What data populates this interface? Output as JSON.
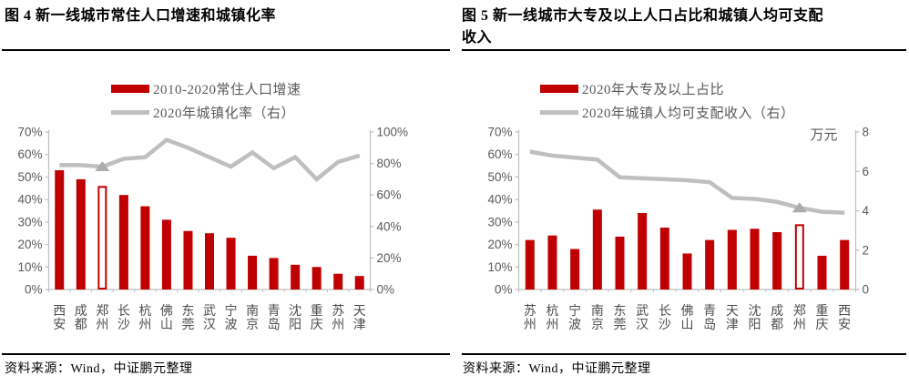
{
  "source_note": "资料来源：Wind，中证鹏元整理",
  "colors": {
    "bar_red": "#C00000",
    "line_gray": "#BFBFBF",
    "marker_gray": "#ACACAC",
    "axis_gray": "#BFBFBF",
    "tick_label_gray": "#595959",
    "category_label_gray": "#4d4d4d",
    "title_black": "#000000"
  },
  "chart_data": [
    {
      "type": "bar",
      "figure_label": "图 4",
      "title": "图 4  新一线城市常住人口增速和城镇化率",
      "legend": [
        {
          "label": "2010-2020常住人口增速",
          "swatch": "bar"
        },
        {
          "label": "2020年城镇化率（右）",
          "swatch": "line"
        }
      ],
      "categories": [
        "西安",
        "成都",
        "郑州",
        "长沙",
        "杭州",
        "佛山",
        "东莞",
        "武汉",
        "宁波",
        "南京",
        "青岛",
        "沈阳",
        "重庆",
        "苏州",
        "天津"
      ],
      "series": [
        {
          "name": "2010-2020常住人口增速",
          "type": "bar",
          "axis": "left",
          "values": [
            53,
            49,
            46,
            42,
            37,
            31,
            26,
            25,
            23,
            15,
            14,
            11,
            10,
            7,
            6
          ]
        },
        {
          "name": "2020年城镇化率（右）",
          "type": "line",
          "axis": "right",
          "values": [
            79,
            79,
            78,
            83,
            84,
            95,
            90,
            84,
            78,
            87,
            77,
            84,
            70,
            81,
            85
          ]
        }
      ],
      "left_axis": {
        "min": 0,
        "max": 70,
        "step": 10,
        "suffix": "%"
      },
      "right_axis": {
        "min": 0,
        "max": 100,
        "step": 20,
        "suffix": "%",
        "unit": ""
      },
      "highlight_category": "郑州",
      "grid": "off",
      "legend_position": "top"
    },
    {
      "type": "bar",
      "figure_label": "图 5",
      "title": "图 5  新一线城市大专及以上人口占比和城镇人均可支配收入",
      "legend": [
        {
          "label": "2020年大专及以上占比",
          "swatch": "bar"
        },
        {
          "label": "2020年城镇人均可支配收入（右）",
          "swatch": "line"
        }
      ],
      "categories": [
        "苏州",
        "杭州",
        "宁波",
        "南京",
        "东莞",
        "武汉",
        "长沙",
        "佛山",
        "青岛",
        "天津",
        "沈阳",
        "成都",
        "郑州",
        "重庆",
        "西安"
      ],
      "series": [
        {
          "name": "2020年大专及以上占比",
          "type": "bar",
          "axis": "left",
          "values": [
            22,
            24,
            18,
            35.5,
            23.5,
            34,
            27.5,
            16,
            22,
            26.5,
            27,
            25.5,
            29,
            15,
            22
          ]
        },
        {
          "name": "2020年城镇人均可支配收入（右）",
          "type": "line",
          "axis": "right",
          "values": [
            7.0,
            6.8,
            6.7,
            6.6,
            5.7,
            5.65,
            5.6,
            5.55,
            5.45,
            4.65,
            4.6,
            4.45,
            4.15,
            3.95,
            3.9
          ]
        }
      ],
      "left_axis": {
        "min": 0,
        "max": 70,
        "step": 10,
        "suffix": "%"
      },
      "right_axis": {
        "min": 0,
        "max": 8,
        "step": 2,
        "suffix": "",
        "unit": "万元"
      },
      "highlight_category": "郑州",
      "grid": "off",
      "legend_position": "top"
    }
  ]
}
